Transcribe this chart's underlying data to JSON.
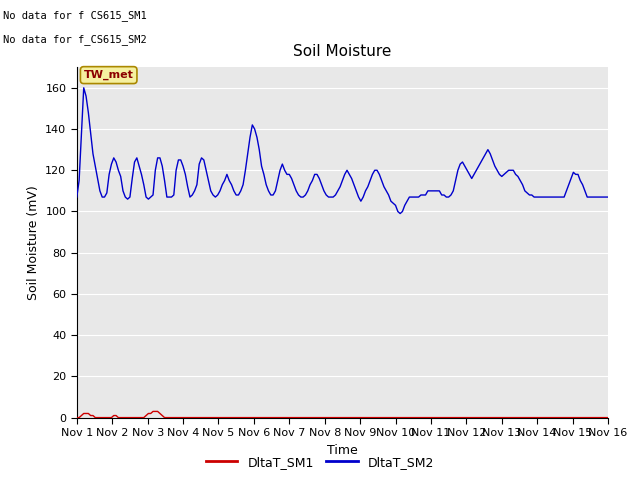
{
  "title": "Soil Moisture",
  "xlabel": "Time",
  "ylabel": "Soil Moisture (mV)",
  "ylim": [
    0,
    170
  ],
  "yticks": [
    0,
    20,
    40,
    60,
    80,
    100,
    120,
    140,
    160
  ],
  "background_color": "#e8e8e8",
  "annotation_text1": "No data for f CS615_SM1",
  "annotation_text2": "No data for f_CS615_SM2",
  "tw_met_label": "TW_met",
  "legend_labels": [
    "DltaT_SM1",
    "DltaT_SM2"
  ],
  "sm1_color": "#cc0000",
  "sm2_color": "#0000cc",
  "x_tick_labels": [
    "Nov 1",
    "Nov 2",
    "Nov 3",
    "Nov 4",
    "Nov 5",
    "Nov 6",
    "Nov 7",
    "Nov 8",
    "Nov 9",
    "Nov 10",
    "Nov 11",
    "Nov 12",
    "Nov 13",
    "Nov 14",
    "Nov 15",
    "Nov 16"
  ],
  "sm2_data": [
    107,
    115,
    137,
    160,
    156,
    148,
    138,
    128,
    122,
    116,
    110,
    107,
    107,
    109,
    118,
    123,
    126,
    124,
    120,
    117,
    110,
    107,
    106,
    107,
    116,
    124,
    126,
    122,
    118,
    113,
    107,
    106,
    107,
    108,
    120,
    126,
    126,
    122,
    115,
    107,
    107,
    107,
    108,
    120,
    125,
    125,
    122,
    118,
    112,
    107,
    108,
    110,
    113,
    123,
    126,
    125,
    120,
    115,
    110,
    108,
    107,
    108,
    110,
    113,
    115,
    118,
    115,
    113,
    110,
    108,
    108,
    110,
    113,
    120,
    128,
    136,
    142,
    140,
    136,
    130,
    122,
    118,
    113,
    110,
    108,
    108,
    110,
    115,
    120,
    123,
    120,
    118,
    118,
    116,
    113,
    110,
    108,
    107,
    107,
    108,
    110,
    113,
    115,
    118,
    118,
    116,
    113,
    110,
    108,
    107,
    107,
    107,
    108,
    110,
    112,
    115,
    118,
    120,
    118,
    116,
    113,
    110,
    107,
    105,
    107,
    110,
    112,
    115,
    118,
    120,
    120,
    118,
    115,
    112,
    110,
    108,
    105,
    104,
    103,
    100,
    99,
    100,
    103,
    105,
    107,
    107,
    107,
    107,
    107,
    108,
    108,
    108,
    110,
    110,
    110,
    110,
    110,
    110,
    108,
    108,
    107,
    107,
    108,
    110,
    115,
    120,
    123,
    124,
    122,
    120,
    118,
    116,
    118,
    120,
    122,
    124,
    126,
    128,
    130,
    128,
    125,
    122,
    120,
    118,
    117,
    118,
    119,
    120,
    120,
    120,
    118,
    117,
    115,
    113,
    110,
    109,
    108,
    108,
    107,
    107,
    107,
    107,
    107,
    107,
    107,
    107,
    107,
    107,
    107,
    107,
    107,
    107,
    110,
    113,
    116,
    119,
    118,
    118,
    115,
    113,
    110,
    107,
    107,
    107,
    107,
    107,
    107,
    107,
    107,
    107,
    107
  ],
  "sm1_data": [
    0,
    0,
    1,
    2,
    2,
    2,
    1,
    1,
    0,
    0,
    0,
    0,
    0,
    0,
    0,
    0,
    1,
    1,
    0,
    0,
    0,
    0,
    0,
    0,
    0,
    0,
    0,
    0,
    0,
    0,
    1,
    2,
    2,
    3,
    3,
    3,
    2,
    1,
    0,
    0,
    0,
    0,
    0,
    0,
    0,
    0,
    0,
    0,
    0,
    0,
    0,
    0,
    0,
    0,
    0,
    0,
    0,
    0,
    0,
    0,
    0,
    0,
    0,
    0,
    0,
    0,
    0,
    0,
    0,
    0,
    0,
    0,
    0,
    0,
    0,
    0,
    0,
    0,
    0,
    0,
    0,
    0,
    0,
    0,
    0,
    0,
    0,
    0,
    0,
    0,
    0,
    0,
    0,
    0,
    0,
    0,
    0,
    0,
    0,
    0,
    0,
    0,
    0,
    0,
    0,
    0,
    0,
    0,
    0,
    0,
    0,
    0,
    0,
    0,
    0,
    0,
    0,
    0,
    0,
    0,
    0,
    0,
    0,
    0,
    0,
    0,
    0,
    0,
    0,
    0,
    0,
    0,
    0,
    0,
    0,
    0,
    0,
    0,
    0,
    0,
    0,
    0,
    0,
    0,
    0,
    0,
    0,
    0,
    0,
    0,
    0,
    0,
    0,
    0,
    0,
    0,
    0,
    0,
    0,
    0,
    0,
    0,
    0,
    0,
    0,
    0,
    0,
    0,
    0,
    0,
    0,
    0,
    0,
    0,
    0,
    0,
    0,
    0,
    0,
    0,
    0,
    0,
    0,
    0,
    0,
    0,
    0,
    0,
    0,
    0,
    0,
    0,
    0,
    0,
    0,
    0,
    0,
    0,
    0,
    0,
    0,
    0,
    0,
    0,
    0,
    0,
    0,
    0,
    0,
    0,
    0,
    0,
    0,
    0,
    0,
    0,
    0,
    0,
    0,
    0,
    0,
    0,
    0,
    0,
    0,
    0,
    0,
    0,
    0,
    0,
    0
  ]
}
